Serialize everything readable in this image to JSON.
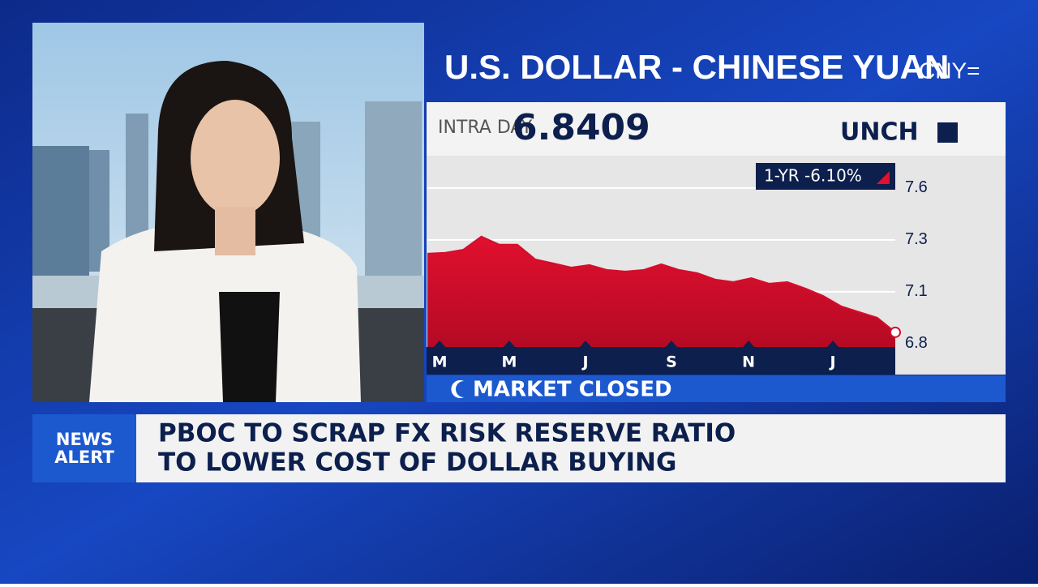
{
  "header": {
    "title": "U.S. DOLLAR - CHINESE YUAN",
    "symbol": "CNY="
  },
  "quote": {
    "label": "INTRA DAY",
    "price": "6.8409",
    "change": "UNCH"
  },
  "chart_data": {
    "type": "area",
    "annotation": "1-YR -6.10%",
    "color": "#d20f2c",
    "values": [
      7.234,
      7.238,
      7.253,
      7.316,
      7.277,
      7.277,
      7.206,
      7.187,
      7.167,
      7.179,
      7.155,
      7.148,
      7.155,
      7.183,
      7.155,
      7.14,
      7.109,
      7.097,
      7.116,
      7.089,
      7.097,
      7.066,
      7.03,
      6.98,
      6.952,
      6.925,
      6.855
    ],
    "xlim": [
      0,
      26
    ],
    "xticks": [
      {
        "value": 0.68,
        "label": "M"
      },
      {
        "value": 4.55,
        "label": "M"
      },
      {
        "value": 8.79,
        "label": "J"
      },
      {
        "value": 13.56,
        "label": "S"
      },
      {
        "value": 17.85,
        "label": "N"
      },
      {
        "value": 22.53,
        "label": "J"
      }
    ],
    "ylim": [
      6.784,
      7.706
    ],
    "yticks": [
      {
        "value": 7.55,
        "label": "7.6"
      },
      7.3,
      {
        "value": 7.05,
        "label": "7.1"
      },
      6.8
    ],
    "grid": true
  },
  "status": "MARKET CLOSED",
  "alert": {
    "tag": [
      "NEWS",
      "ALERT"
    ],
    "headline": [
      "PBOC TO SCRAP FX RISK RESERVE RATIO",
      "TO LOWER COST OF DOLLAR BUYING"
    ]
  }
}
